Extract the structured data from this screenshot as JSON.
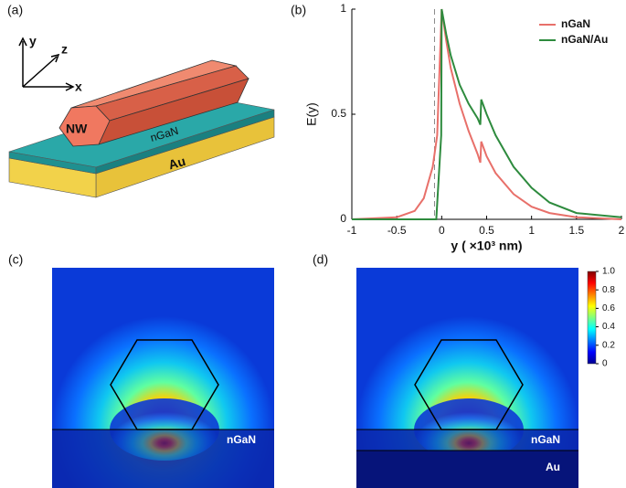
{
  "diagram": {
    "panel_label": "(a)",
    "axis_labels": {
      "x": "x",
      "y": "y",
      "z": "z"
    },
    "labels": {
      "nanowire": "NW",
      "layer": "nGaN",
      "substrate": "Au"
    }
  },
  "chart_data": [
    {
      "type": "line",
      "panel_label": "(b)",
      "xlabel": "y ( ×10³ nm)",
      "ylabel": "E(y)",
      "xlim": [
        -1,
        2
      ],
      "ylim": [
        0,
        1
      ],
      "xticks": [
        -1,
        -0.5,
        0,
        0.5,
        1,
        1.5,
        2
      ],
      "yticks": [
        0,
        0.5,
        1
      ],
      "legend": "upper right",
      "vline_x": -0.08,
      "series": [
        {
          "name": "nGaN",
          "color": "#e8706a",
          "x": [
            -1,
            -0.5,
            -0.3,
            -0.2,
            -0.1,
            -0.05,
            0,
            0.05,
            0.1,
            0.2,
            0.3,
            0.4,
            0.43,
            0.44,
            0.5,
            0.6,
            0.8,
            1.0,
            1.2,
            1.5,
            2
          ],
          "values": [
            0,
            0.01,
            0.04,
            0.1,
            0.25,
            0.4,
            1.0,
            0.85,
            0.72,
            0.55,
            0.42,
            0.31,
            0.27,
            0.37,
            0.3,
            0.22,
            0.12,
            0.06,
            0.03,
            0.01,
            0
          ]
        },
        {
          "name": "nGaN/Au",
          "color": "#2e8b3e",
          "x": [
            -1,
            -0.5,
            -0.1,
            -0.06,
            -0.005,
            0,
            0.05,
            0.1,
            0.2,
            0.3,
            0.4,
            0.43,
            0.44,
            0.5,
            0.6,
            0.8,
            1.0,
            1.2,
            1.5,
            2
          ],
          "values": [
            0,
            0,
            0,
            0,
            0.4,
            1.0,
            0.88,
            0.78,
            0.64,
            0.55,
            0.48,
            0.45,
            0.57,
            0.5,
            0.4,
            0.25,
            0.15,
            0.08,
            0.03,
            0.01
          ]
        }
      ]
    },
    {
      "type": "heatmap",
      "panel_label": "(c)",
      "annotations": [
        "nGaN"
      ]
    },
    {
      "type": "heatmap",
      "panel_label": "(d)",
      "annotations": [
        "nGaN",
        "Au"
      ],
      "colorbar": {
        "lim": [
          0,
          1
        ],
        "ticks": [
          0,
          0.2,
          0.4,
          0.6,
          0.8,
          {
            "value": 1,
            "label": "1.0"
          }
        ]
      }
    }
  ]
}
